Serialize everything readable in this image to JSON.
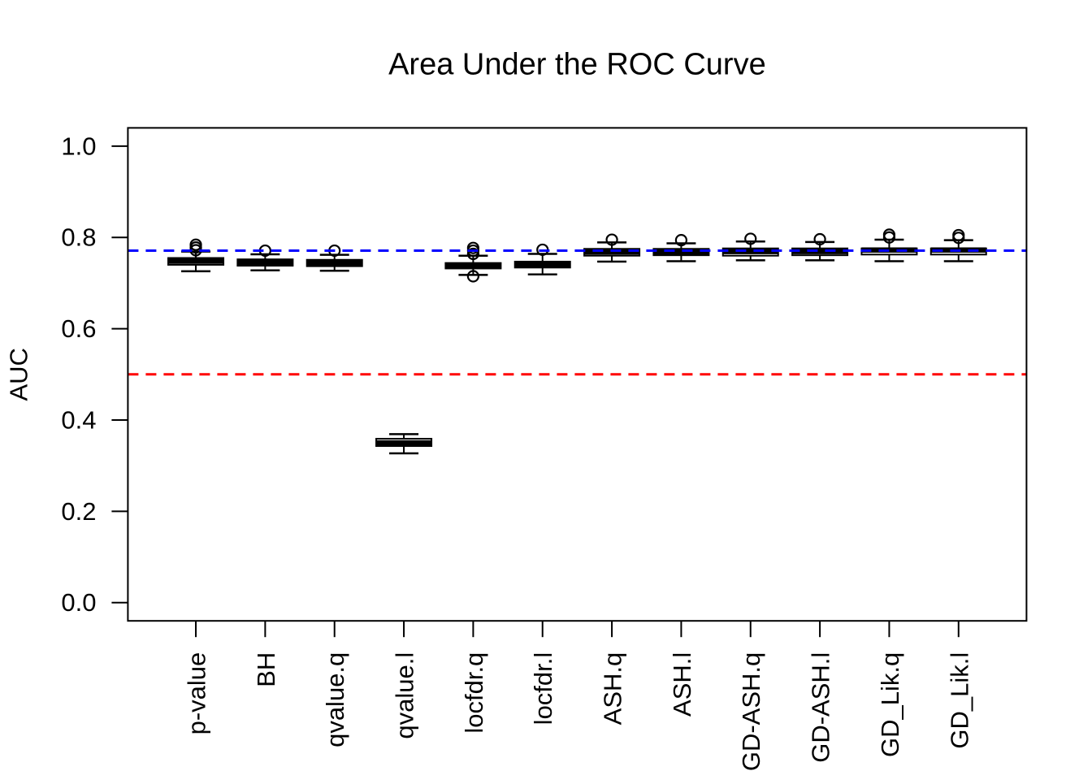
{
  "chart_data": {
    "type": "boxplot",
    "title": "Area Under the ROC Curve",
    "xlabel": "",
    "ylabel": "AUC",
    "ylim": [
      0,
      1
    ],
    "y_ticks": [
      "0.0",
      "0.2",
      "0.4",
      "0.6",
      "0.8",
      "1.0"
    ],
    "grid": false,
    "legend": false,
    "categories": [
      "p-value",
      "BH",
      "qvalue.q",
      "qvalue.l",
      "locfdr.q",
      "locfdr.l",
      "ASH.q",
      "ASH.l",
      "GD-ASH.q",
      "GD-ASH.l",
      "GD_Lik.q",
      "GD_Lik.l"
    ],
    "boxes": [
      {
        "category": "p-value",
        "whislo": 0.726,
        "q1": 0.74,
        "med": 0.748,
        "q3": 0.755,
        "whishi": 0.769,
        "outliers": [
          0.784,
          0.778,
          0.772
        ]
      },
      {
        "category": "BH",
        "whislo": 0.728,
        "q1": 0.738,
        "med": 0.745,
        "q3": 0.752,
        "whishi": 0.763,
        "outliers": [
          0.771
        ]
      },
      {
        "category": "qvalue.q",
        "whislo": 0.727,
        "q1": 0.737,
        "med": 0.744,
        "q3": 0.751,
        "whishi": 0.762,
        "outliers": [
          0.771
        ]
      },
      {
        "category": "qvalue.l",
        "whislo": 0.327,
        "q1": 0.343,
        "med": 0.35,
        "q3": 0.359,
        "whishi": 0.369,
        "outliers": []
      },
      {
        "category": "locfdr.q",
        "whislo": 0.718,
        "q1": 0.732,
        "med": 0.738,
        "q3": 0.744,
        "whishi": 0.76,
        "outliers": [
          0.777,
          0.771,
          0.764,
          0.715
        ]
      },
      {
        "category": "locfdr.l",
        "whislo": 0.719,
        "q1": 0.734,
        "med": 0.74,
        "q3": 0.747,
        "whishi": 0.764,
        "outliers": [
          0.773
        ]
      },
      {
        "category": "ASH.q",
        "whislo": 0.747,
        "q1": 0.76,
        "med": 0.768,
        "q3": 0.775,
        "whishi": 0.789,
        "outliers": [
          0.795
        ]
      },
      {
        "category": "ASH.l",
        "whislo": 0.748,
        "q1": 0.761,
        "med": 0.768,
        "q3": 0.775,
        "whishi": 0.787,
        "outliers": [
          0.794
        ]
      },
      {
        "category": "GD-ASH.q",
        "whislo": 0.75,
        "q1": 0.76,
        "med": 0.769,
        "q3": 0.776,
        "whishi": 0.791,
        "outliers": [
          0.797
        ]
      },
      {
        "category": "GD-ASH.l",
        "whislo": 0.75,
        "q1": 0.761,
        "med": 0.769,
        "q3": 0.776,
        "whishi": 0.79,
        "outliers": [
          0.796
        ]
      },
      {
        "category": "GD_Lik.q",
        "whislo": 0.748,
        "q1": 0.7625,
        "med": 0.7725,
        "q3": 0.776,
        "whishi": 0.795,
        "outliers": [
          0.806,
          0.8
        ]
      },
      {
        "category": "GD_Lik.l",
        "whislo": 0.748,
        "q1": 0.7625,
        "med": 0.7725,
        "q3": 0.776,
        "whishi": 0.794,
        "outliers": [
          0.805,
          0.799
        ]
      }
    ],
    "reference_lines": [
      {
        "name": "blue-reference-line",
        "value": 0.771,
        "color": "#0000FF",
        "style": "dashed"
      },
      {
        "name": "red-reference-line",
        "value": 0.5,
        "color": "#FF0000",
        "style": "dashed"
      }
    ],
    "colors": {
      "stroke": "#000000",
      "box_fill": "#FFFFFF",
      "background": "#FFFFFF"
    }
  }
}
